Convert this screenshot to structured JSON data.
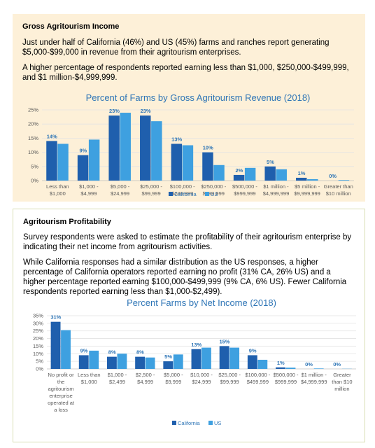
{
  "section1": {
    "title": "Gross Agritourism Income",
    "para1": "Just under half of California (46%) and US (45%) farms and ranches report generating $5,000-$99,000 in revenue from their agritourism enterprises.",
    "para2": "A higher percentage of respondents reported earning less than $1,000, $250,000-$499,999, and $1 million-$4,999,999."
  },
  "section2": {
    "title": "Agritourism Profitability",
    "para1": "Survey respondents were asked to estimate the profitability of their agritourism enterprise by indicating their net income from agritourism activities.",
    "para2": "While California responses had a similar distribution as the US responses, a higher percentage of California operators reported earning no profit (31% CA, 26% US) and a higher percentage reported earning $100,000-$499,999 (9% CA, 6% US).   Fewer California respondents reported earning less than $1,000-$2,499)."
  },
  "colors": {
    "california": "#1f5fad",
    "us": "#3ea0e0",
    "title": "#2e75b6"
  },
  "chart_data": [
    {
      "type": "bar",
      "title": "Percent of Farms by Gross Agritourism Revenue (2018)",
      "categories": [
        [
          "Less than",
          "$1,000"
        ],
        [
          "$1,000 -",
          "$4,999"
        ],
        [
          "$5,000 -",
          "$24,999"
        ],
        [
          "$25,000 -",
          "$99,999"
        ],
        [
          "$100,000 -",
          "$249,999"
        ],
        [
          "$250,000 -",
          "$499,999"
        ],
        [
          "$500,000 -",
          "$999,999"
        ],
        [
          "$1 million -",
          "$4,999,999"
        ],
        [
          "$5 million -",
          "$9,999,999"
        ],
        [
          "Greater than",
          "$10 million"
        ]
      ],
      "series": [
        {
          "name": "California",
          "values": [
            14,
            9,
            23,
            23,
            13,
            10,
            2,
            5,
            1,
            0
          ],
          "labels": [
            "14%",
            "9%",
            "23%",
            "23%",
            "13%",
            "10%",
            "2%",
            "5%",
            "1%",
            "0%"
          ]
        },
        {
          "name": "US",
          "values": [
            13,
            14.5,
            24,
            21,
            12.5,
            5.5,
            4.5,
            4,
            0.5,
            0.2
          ]
        }
      ],
      "yticks": [
        "0%",
        "5%",
        "10%",
        "15%",
        "20%",
        "25%"
      ],
      "ylim": [
        0,
        25
      ],
      "legend": "bottom",
      "grid": true
    },
    {
      "type": "bar",
      "title": "Percent Farms by Net Income (2018)",
      "categories": [
        [
          "No profit or",
          "the",
          "agritourism",
          "enterprise",
          "operated at",
          "a loss"
        ],
        [
          "Less than",
          "$1,000"
        ],
        [
          "$1,000 -",
          "$2,499"
        ],
        [
          "$2,500 -",
          "$4,999"
        ],
        [
          "$5,000 -",
          "$9,999"
        ],
        [
          "$10,000 -",
          "$24,999"
        ],
        [
          "$25,000 -",
          "$99,999"
        ],
        [
          "$100,000 -",
          "$499,999"
        ],
        [
          "$500,000 -",
          "$999,999"
        ],
        [
          "$1 million -",
          "$4,999,999"
        ],
        [
          "Greater",
          "than $10",
          "million"
        ]
      ],
      "series": [
        {
          "name": "California",
          "values": [
            31,
            9,
            8,
            8,
            5,
            13,
            15,
            9,
            1,
            0,
            0
          ],
          "labels": [
            "31%",
            "9%",
            "8%",
            "8%",
            "5%",
            "13%",
            "15%",
            "9%",
            "1%",
            "0%",
            "0%"
          ]
        },
        {
          "name": "US",
          "values": [
            25.5,
            12,
            10,
            7.5,
            9.5,
            14,
            14,
            6,
            0.8,
            0.3,
            0.1
          ]
        }
      ],
      "yticks": [
        "0%",
        "5%",
        "10%",
        "15%",
        "20%",
        "25%",
        "30%",
        "35%"
      ],
      "ylim": [
        0,
        35
      ],
      "legend": "bottom",
      "grid": true
    }
  ]
}
